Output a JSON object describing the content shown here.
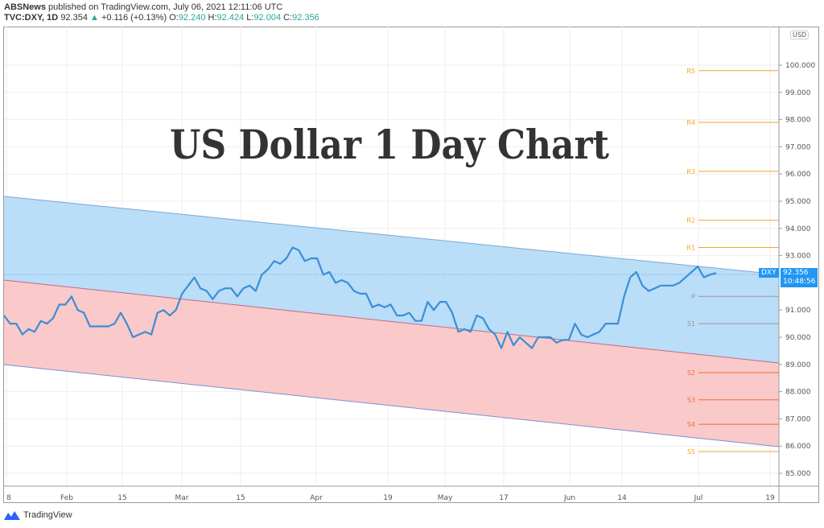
{
  "header": {
    "publisher": "ABSNews",
    "published_text": "published on TradingView.com, July 06, 2021 12:11:06 UTC",
    "symbol": "TVC:DXY, 1D",
    "last": "92.354",
    "change": "+0.116 (+0.13%)",
    "open_label": "O:",
    "open": "92.240",
    "high_label": "H:",
    "high": "92.424",
    "low_label": "L:",
    "low": "92.004",
    "close_label": "C:",
    "close": "92.356"
  },
  "overlay_title": "US Dollar 1 Day Chart",
  "price_axis": {
    "currency": "USD",
    "ticks": [
      "100.000",
      "99.000",
      "98.000",
      "97.000",
      "96.000",
      "95.000",
      "94.000",
      "93.000",
      "91.000",
      "90.000",
      "89.000",
      "88.000",
      "87.000",
      "86.000",
      "85.000"
    ]
  },
  "time_axis": {
    "ticks": [
      "8",
      "Feb",
      "15",
      "Mar",
      "15",
      "Apr",
      "19",
      "May",
      "17",
      "Jun",
      "14",
      "Jul",
      "19"
    ]
  },
  "price_tag": {
    "symbol": "DXY",
    "price": "92.356",
    "countdown": "10:48:56"
  },
  "pivots": [
    "R5",
    "R4",
    "R3",
    "R2",
    "R1",
    "P",
    "S1",
    "S2",
    "S3",
    "S4",
    "S5"
  ],
  "footer": {
    "brand": "TradingView"
  },
  "colors": {
    "line": "#3a8fd6",
    "upper_channel": "#b3d9f7",
    "lower_channel": "#f9c3c3",
    "pivot_r": "#f5a623",
    "pivot_p": "#999999",
    "pivot_s": "#ef6c3a",
    "tag": "#2196f3"
  },
  "chart_data": {
    "type": "line",
    "title": "US Dollar 1 Day Chart",
    "symbol": "TVC:DXY",
    "interval": "1D",
    "xlabel": "",
    "ylabel": "USD",
    "ylim": [
      84.5,
      101
    ],
    "x_ticks": [
      "Jan 8",
      "Feb",
      "15",
      "Mar",
      "15",
      "Apr",
      "19",
      "May",
      "17",
      "Jun",
      "14",
      "Jul",
      "19"
    ],
    "series": [
      {
        "name": "DXY close",
        "approx_values": [
          90.8,
          90.5,
          90.5,
          90.1,
          90.3,
          90.2,
          90.6,
          90.5,
          90.7,
          91.2,
          91.2,
          91.5,
          91.0,
          90.9,
          90.4,
          90.4,
          90.4,
          90.4,
          90.5,
          90.9,
          90.5,
          90.0,
          90.1,
          90.2,
          90.1,
          90.9,
          91.0,
          90.8,
          91.0,
          91.6,
          91.9,
          92.2,
          91.8,
          91.7,
          91.4,
          91.7,
          91.8,
          91.8,
          91.5,
          91.8,
          91.9,
          91.7,
          92.3,
          92.5,
          92.8,
          92.7,
          92.9,
          93.3,
          93.2,
          92.8,
          92.9,
          92.9,
          92.3,
          92.4,
          92.0,
          92.1,
          92.0,
          91.7,
          91.6,
          91.6,
          91.1,
          91.2,
          91.1,
          91.2,
          90.8,
          90.8,
          90.9,
          90.6,
          90.6,
          91.3,
          91.0,
          91.3,
          91.3,
          90.9,
          90.2,
          90.3,
          90.2,
          90.8,
          90.7,
          90.3,
          90.1,
          89.6,
          90.2,
          89.7,
          90.0,
          89.8,
          89.6,
          90.0,
          90.0,
          90.0,
          89.8,
          89.9,
          89.9,
          90.5,
          90.1,
          90.0,
          90.1,
          90.2,
          90.5,
          90.5,
          90.5,
          91.5,
          92.2,
          92.4,
          91.9,
          91.7,
          91.8,
          91.9,
          91.9,
          91.9,
          92.0,
          92.2,
          92.4,
          92.6,
          92.2,
          92.3,
          92.36
        ]
      }
    ],
    "channel": {
      "upper": {
        "start": 95.2,
        "end": 92.3
      },
      "middle": {
        "start": 92.1,
        "end": 89.1
      },
      "lower": {
        "start": 89.0,
        "end": 86.0
      }
    },
    "pivot_levels": {
      "R5": 99.8,
      "R4": 97.9,
      "R3": 96.1,
      "R2": 94.3,
      "R1": 93.3,
      "P": 91.5,
      "S1": 90.5,
      "S2": 88.7,
      "S3": 87.7,
      "S4": 86.8,
      "S5": 85.8
    },
    "last_price": 92.356
  }
}
